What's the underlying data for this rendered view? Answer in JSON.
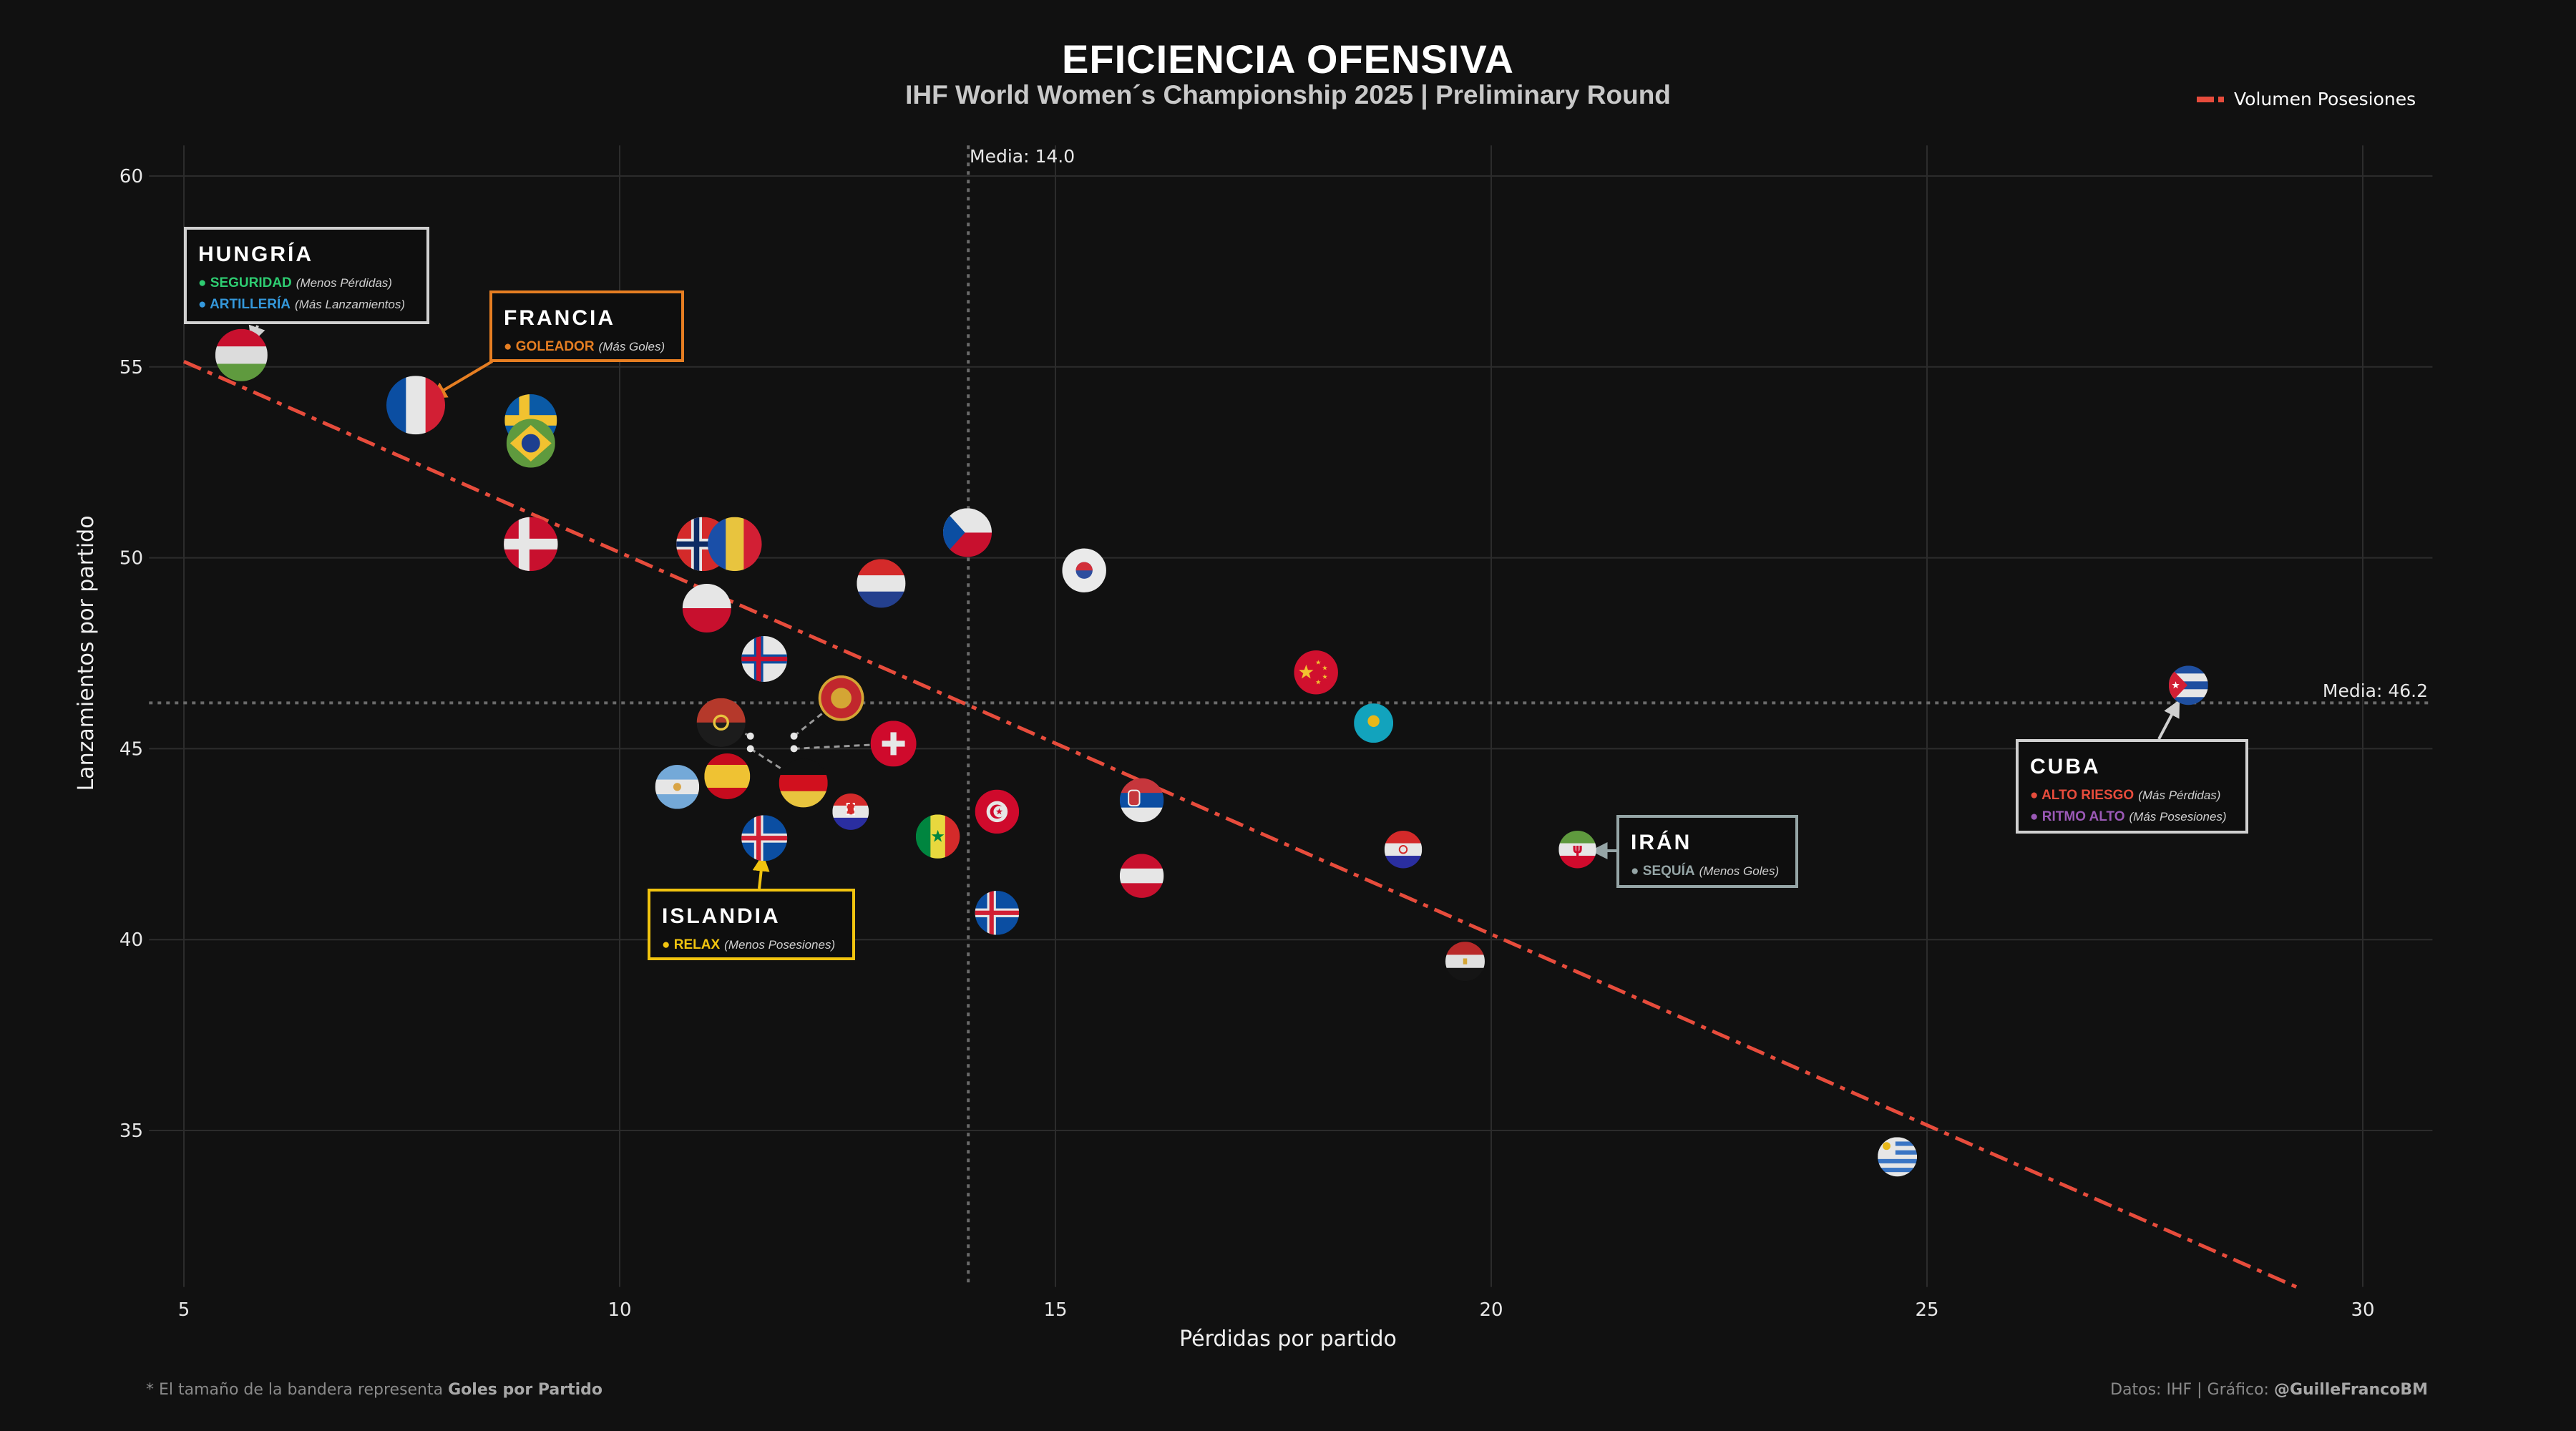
{
  "title": "EFICIENCIA OFENSIVA",
  "subtitle": "IHF World Women´s Championship 2025 | Preliminary Round",
  "legend": {
    "label": "Volumen Posesiones",
    "color": "#e74c3c"
  },
  "footer": {
    "note_prefix": "* El tamaño de la bandera representa ",
    "note_bold": "Goles por Partido",
    "credit_prefix": "Datos: IHF | Gráfico: ",
    "credit_bold": "@GuilleFrancoBM"
  },
  "annotations": {
    "hungria": {
      "title": "HUNGRÍA",
      "border": "#d0d0d0",
      "items": [
        {
          "label": "SEGURIDAD",
          "desc": "(Menos Pérdidas)",
          "color": "#2ecc71"
        },
        {
          "label": "ARTILLERÍA",
          "desc": "(Más Lanzamientos)",
          "color": "#3498db"
        }
      ]
    },
    "francia": {
      "title": "FRANCIA",
      "border": "#e67e22",
      "items": [
        {
          "label": "GOLEADOR",
          "desc": "(Más Goles)",
          "color": "#e67e22"
        }
      ]
    },
    "islandia": {
      "title": "ISLANDIA",
      "border": "#f1c40f",
      "items": [
        {
          "label": "RELAX",
          "desc": "(Menos Posesiones)",
          "color": "#f1c40f"
        }
      ]
    },
    "iran": {
      "title": "IRÁN",
      "border": "#95a5a6",
      "items": [
        {
          "label": "SEQUÍA",
          "desc": "(Menos Goles)",
          "color": "#95a5a6"
        }
      ]
    },
    "cuba": {
      "title": "CUBA",
      "border": "#d0d0d0",
      "items": [
        {
          "label": "ALTO RIESGO",
          "desc": "(Más Pérdidas)",
          "color": "#e74c3c"
        },
        {
          "label": "RITMO ALTO",
          "desc": "(Más Posesiones)",
          "color": "#9b59b6"
        }
      ]
    }
  },
  "chart_data": {
    "type": "scatter",
    "title": "EFICIENCIA OFENSIVA",
    "subtitle": "IHF World Women´s Championship 2025 | Preliminary Round",
    "xlabel": "Pérdidas por partido",
    "ylabel": "Lanzamientos por partido",
    "xlim": [
      4.6,
      30.8
    ],
    "ylim": [
      30.9,
      60.8
    ],
    "x_ticks": [
      "5",
      "10",
      "15",
      "20",
      "25",
      "30"
    ],
    "y_ticks": [
      "35",
      "40",
      "45",
      "50",
      "55",
      "60"
    ],
    "grid": true,
    "legend_position": "top-right",
    "mean_x": {
      "value": 14.0,
      "label": "Media: 14.0"
    },
    "mean_y": {
      "value": 46.2,
      "label": "Media: 46.2"
    },
    "trend": {
      "slope": -1.0,
      "intercept": 60.14,
      "x_range": [
        5.0,
        29.25
      ],
      "color": "#e74c3c"
    },
    "marker": "country-flag",
    "size_encoding": "Goles por Partido (relative)",
    "points": [
      {
        "flag": "hu",
        "x": 5.66,
        "y": 55.31,
        "goles_rel": 0.89
      },
      {
        "flag": "fr",
        "x": 7.66,
        "y": 54.0,
        "goles_rel": 1.0
      },
      {
        "flag": "se",
        "x": 8.98,
        "y": 53.6,
        "goles_rel": 0.89
      },
      {
        "flag": "br",
        "x": 8.98,
        "y": 53.0,
        "goles_rel": 0.83
      },
      {
        "flag": "dk",
        "x": 8.98,
        "y": 50.36,
        "goles_rel": 0.92
      },
      {
        "flag": "no",
        "x": 10.96,
        "y": 50.36,
        "goles_rel": 0.92
      },
      {
        "flag": "ro",
        "x": 11.32,
        "y": 50.36,
        "goles_rel": 0.92
      },
      {
        "flag": "cz",
        "x": 13.99,
        "y": 50.66,
        "goles_rel": 0.83
      },
      {
        "flag": "kr",
        "x": 15.33,
        "y": 49.67,
        "goles_rel": 0.75
      },
      {
        "flag": "nl",
        "x": 13.0,
        "y": 49.33,
        "goles_rel": 0.83
      },
      {
        "flag": "pl",
        "x": 11.0,
        "y": 48.68,
        "goles_rel": 0.83
      },
      {
        "flag": "fo",
        "x": 11.66,
        "y": 47.35,
        "goles_rel": 0.78
      },
      {
        "flag": "me",
        "x": 12.0,
        "y": 45.33,
        "goles_rel": 0.78
      },
      {
        "flag": "cn",
        "x": 17.99,
        "y": 47.0,
        "goles_rel": 0.75
      },
      {
        "flag": "kz",
        "x": 18.65,
        "y": 45.67,
        "goles_rel": 0.67
      },
      {
        "flag": "cu",
        "x": 28.0,
        "y": 46.66,
        "goles_rel": 0.67
      },
      {
        "flag": "ao",
        "x": 11.5,
        "y": 45.33,
        "goles_rel": 0.83
      },
      {
        "flag": "ch",
        "x": 12.0,
        "y": 45.0,
        "goles_rel": 0.78
      },
      {
        "flag": "ar",
        "x": 10.66,
        "y": 44.0,
        "goles_rel": 0.75
      },
      {
        "flag": "es",
        "x": 11.25,
        "y": 44.67,
        "goles_rel": 0.78
      },
      {
        "flag": "de",
        "x": 11.5,
        "y": 45.0,
        "goles_rel": 0.83
      },
      {
        "flag": "hr",
        "x": 12.65,
        "y": 43.35,
        "goles_rel": 0.62
      },
      {
        "flag": "tn",
        "x": 14.33,
        "y": 43.35,
        "goles_rel": 0.75
      },
      {
        "flag": "rs",
        "x": 15.99,
        "y": 43.65,
        "goles_rel": 0.75
      },
      {
        "flag": "sn",
        "x": 13.65,
        "y": 42.7,
        "goles_rel": 0.75
      },
      {
        "flag": "is",
        "x": 11.66,
        "y": 42.66,
        "goles_rel": 0.78
      },
      {
        "flag": "py",
        "x": 18.99,
        "y": 42.36,
        "goles_rel": 0.64
      },
      {
        "flag": "ir",
        "x": 20.99,
        "y": 42.36,
        "goles_rel": 0.64
      },
      {
        "flag": "at",
        "x": 15.99,
        "y": 41.67,
        "goles_rel": 0.75
      },
      {
        "flag": "is",
        "x": 14.33,
        "y": 40.7,
        "goles_rel": 0.75
      },
      {
        "flag": "eg",
        "x": 19.7,
        "y": 39.43,
        "goles_rel": 0.67
      },
      {
        "flag": "uy",
        "x": 24.66,
        "y": 34.31,
        "goles_rel": 0.67
      }
    ]
  }
}
